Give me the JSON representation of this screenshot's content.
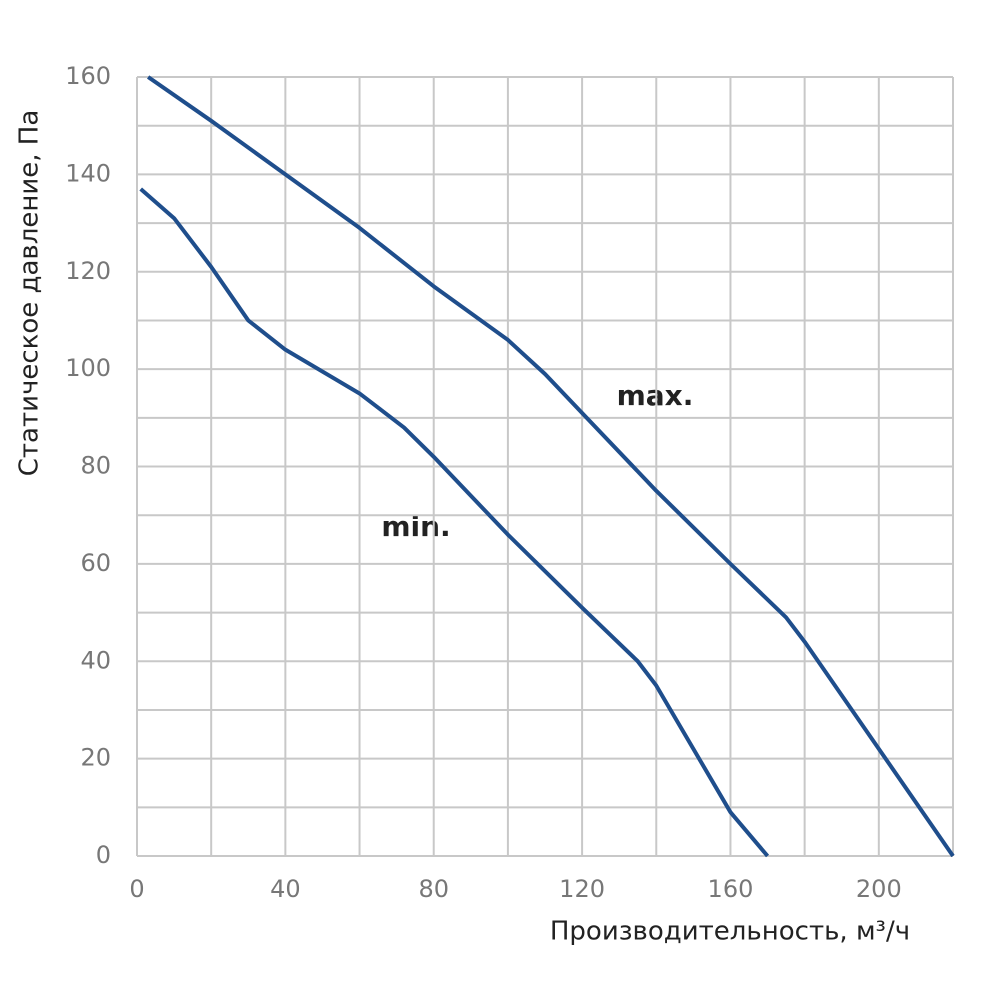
{
  "chart_data": {
    "type": "line",
    "x_label": "Производительность, м³/ч",
    "y_label": "Статическое давление, Па",
    "xlim": [
      0,
      220
    ],
    "ylim": [
      0,
      160
    ],
    "xticks": [
      0,
      40,
      80,
      120,
      160,
      200
    ],
    "yticks": [
      0,
      20,
      40,
      60,
      80,
      100,
      120,
      140,
      160
    ],
    "xgrid": [
      0,
      20,
      40,
      60,
      80,
      100,
      120,
      140,
      160,
      180,
      200,
      220
    ],
    "ygrid": [
      0,
      10,
      20,
      30,
      40,
      50,
      60,
      70,
      80,
      90,
      100,
      110,
      120,
      130,
      140,
      150,
      160
    ],
    "grid_color": "#c8c8c8",
    "series": [
      {
        "name": "max.",
        "color": "#1f4e8c",
        "x": [
          3,
          20,
          40,
          60,
          80,
          100,
          110,
          120,
          140,
          160,
          175,
          180,
          200,
          220
        ],
        "values": [
          160,
          151,
          140,
          129,
          117,
          106,
          99,
          91,
          75,
          60,
          49,
          44,
          22,
          0
        ]
      },
      {
        "name": "min.",
        "color": "#1f4e8c",
        "x": [
          1,
          10,
          20,
          30,
          40,
          60,
          72,
          80,
          100,
          120,
          135,
          140,
          150,
          160,
          170
        ],
        "values": [
          137,
          131,
          121,
          110,
          104,
          95,
          88,
          82,
          66,
          51,
          40,
          35,
          22,
          9,
          0
        ]
      }
    ]
  }
}
